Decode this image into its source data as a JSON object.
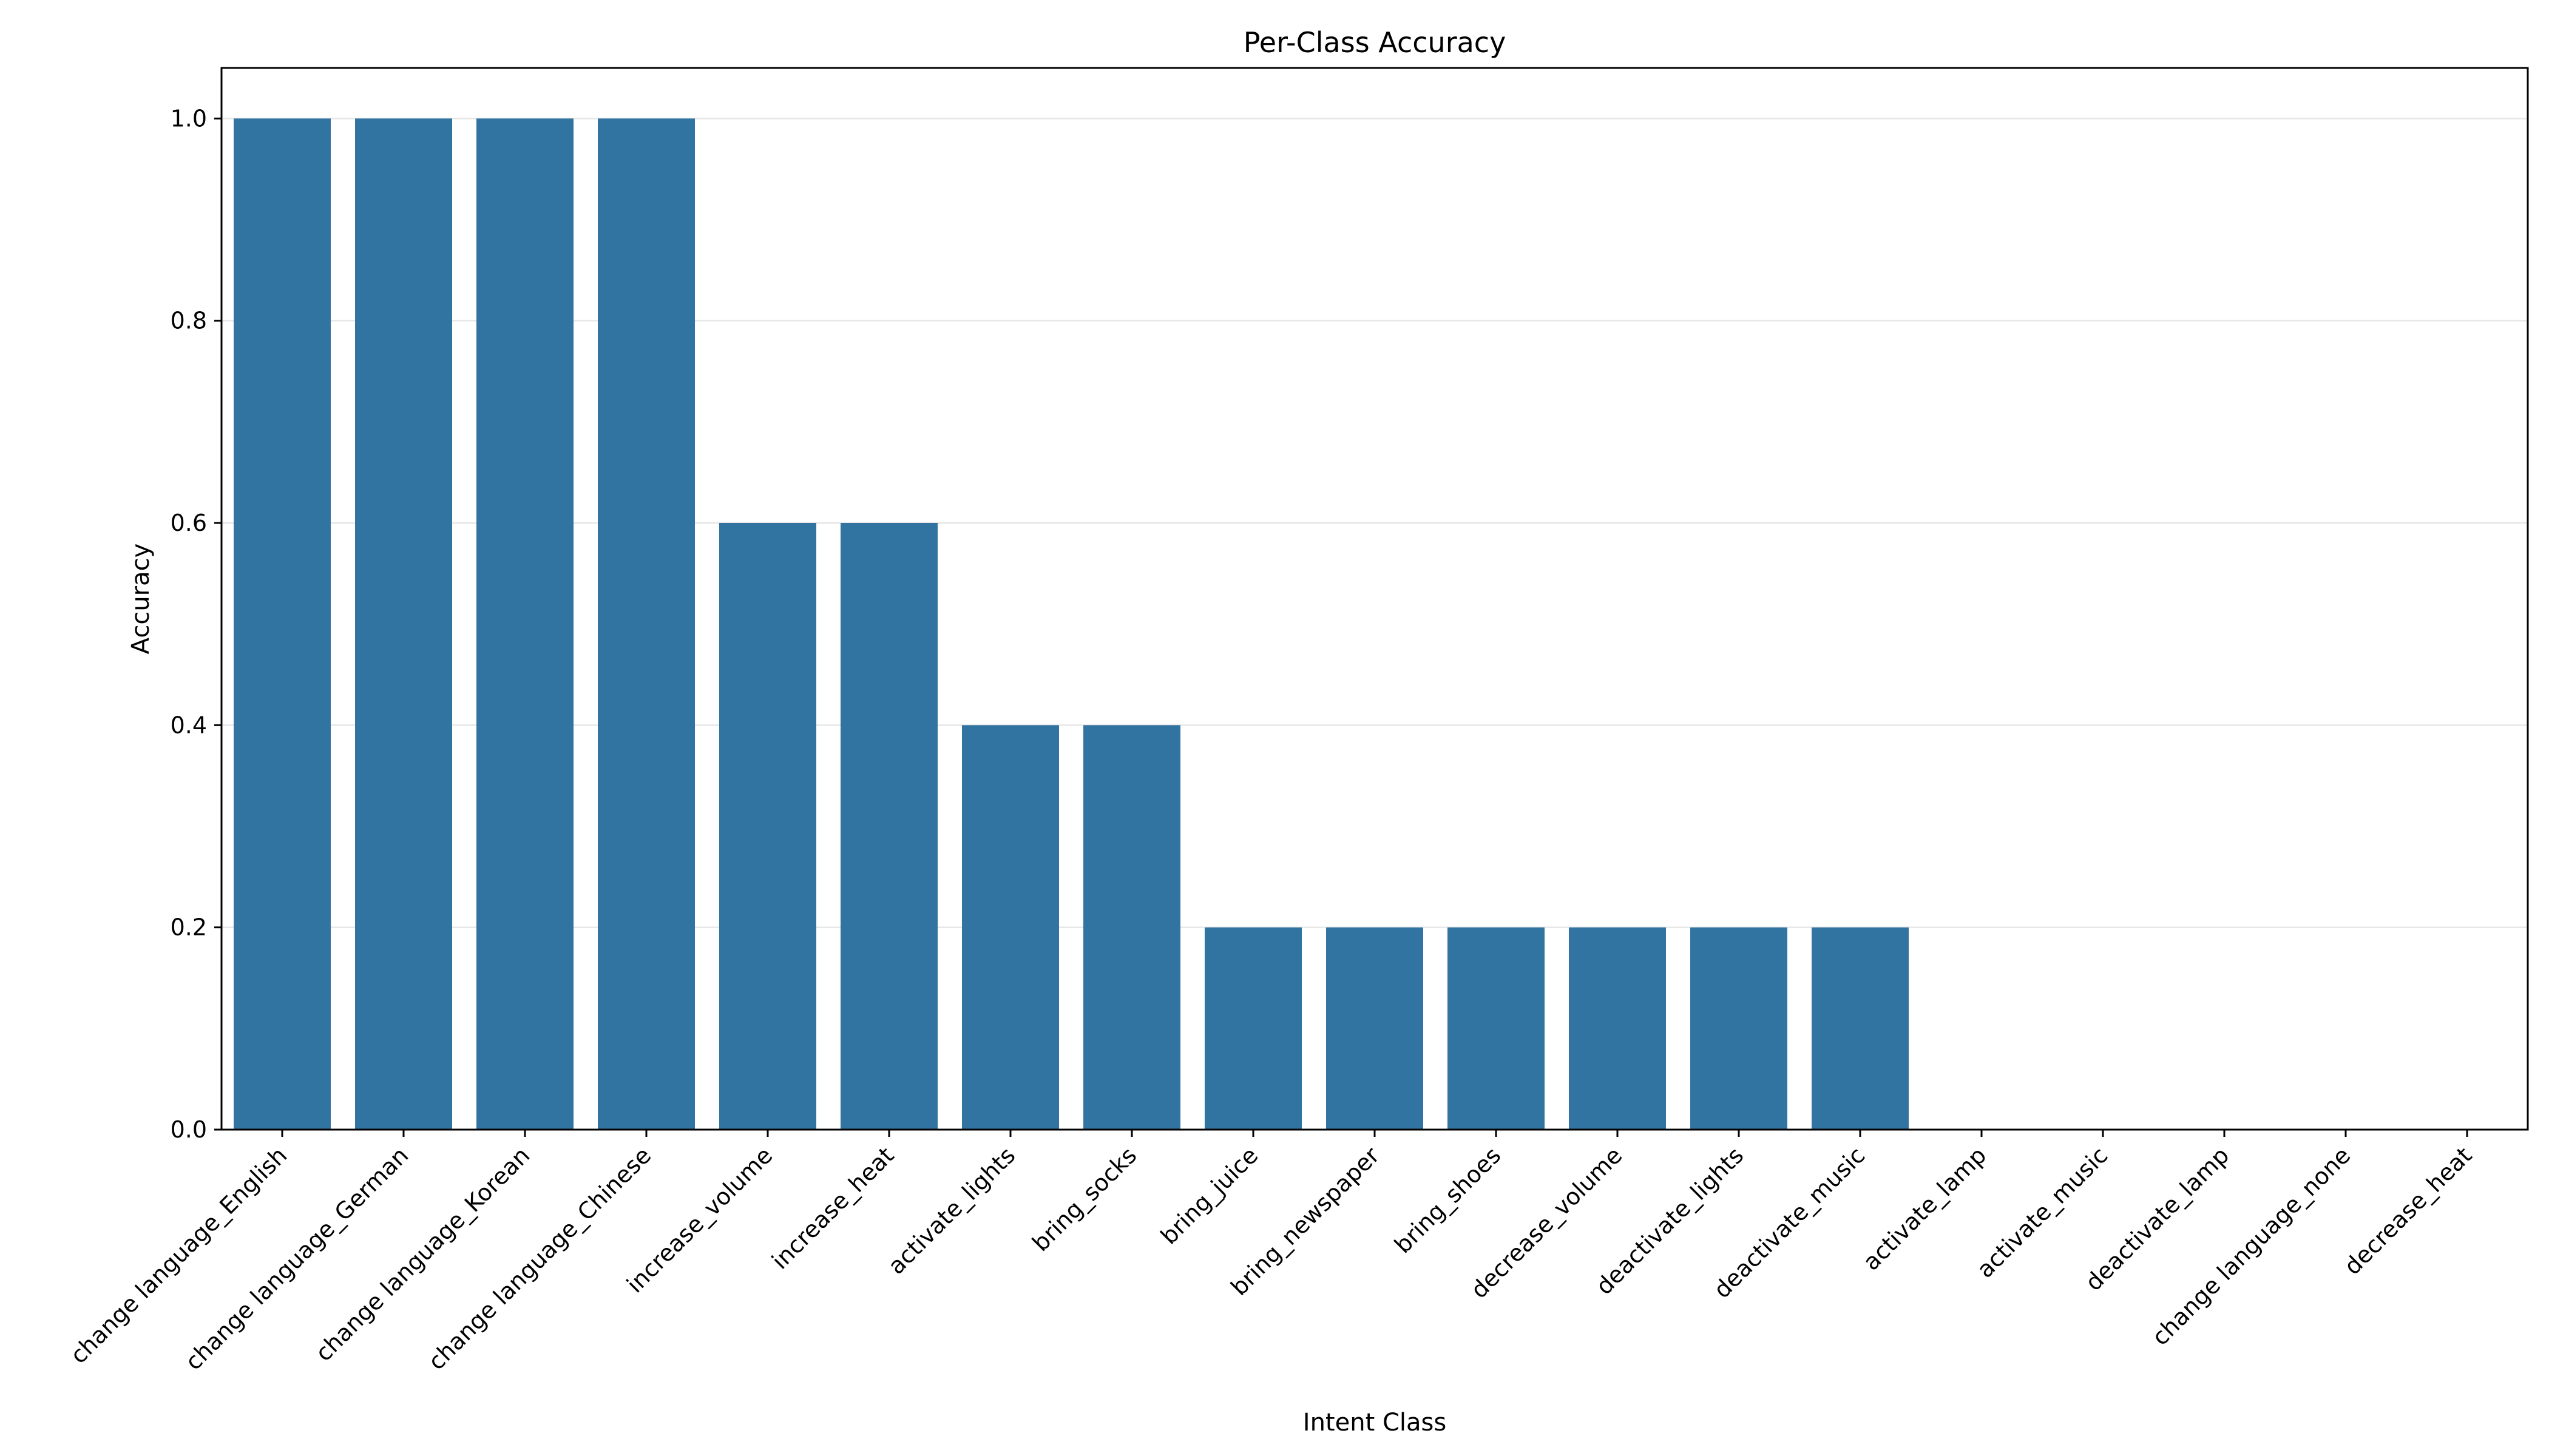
{
  "chart_data": {
    "type": "bar",
    "title": "Per-Class Accuracy",
    "xlabel": "Intent Class",
    "ylabel": "Accuracy",
    "categories": [
      "change language_English",
      "change language_German",
      "change language_Korean",
      "change language_Chinese",
      "increase_volume",
      "increase_heat",
      "activate_lights",
      "bring_socks",
      "bring_juice",
      "bring_newspaper",
      "bring_shoes",
      "decrease_volume",
      "deactivate_lights",
      "deactivate_music",
      "activate_lamp",
      "activate_music",
      "deactivate_lamp",
      "change language_none",
      "decrease_heat"
    ],
    "values": [
      1.0,
      1.0,
      1.0,
      1.0,
      0.6,
      0.6,
      0.4,
      0.4,
      0.2,
      0.2,
      0.2,
      0.2,
      0.2,
      0.2,
      0.0,
      0.0,
      0.0,
      0.0,
      0.0
    ],
    "ylim": [
      0,
      1.05
    ],
    "yticks": [
      0.0,
      0.2,
      0.4,
      0.6,
      0.8,
      1.0
    ],
    "ytick_labels": [
      "0.0",
      "0.2",
      "0.4",
      "0.6",
      "0.8",
      "1.0"
    ],
    "grid": "horizontal",
    "bar_color": "#3274a1"
  }
}
